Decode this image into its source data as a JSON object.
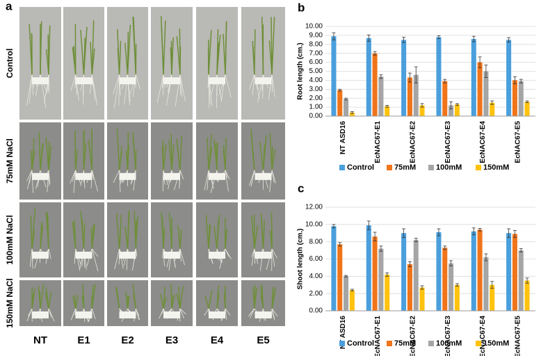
{
  "panel_a": {
    "label": "a",
    "rows": [
      "Control",
      "75mM NaCl",
      "100mM NaCl",
      "150mM NaCl"
    ],
    "columns": [
      "NT",
      "E1",
      "E2",
      "E3",
      "E4",
      "E5"
    ]
  },
  "chart_data": [
    {
      "type": "bar",
      "panel": "b",
      "y_label": "Root length (cm.)",
      "categories": [
        "NT ASD16",
        "EcNAC67-E1",
        "EcNAC67-E2",
        "EcNAC67-E3",
        "EcNAC67-E4",
        "EcNAC67-E5"
      ],
      "series": [
        {
          "name": "Control",
          "color": "#4a9fdc",
          "values": [
            8.9,
            8.7,
            8.5,
            8.8,
            8.6,
            8.5
          ],
          "errors": [
            0.4,
            0.35,
            0.3,
            0.15,
            0.3,
            0.25
          ]
        },
        {
          "name": "75mM",
          "color": "#f0741a",
          "values": [
            2.9,
            7.0,
            4.3,
            3.9,
            6.0,
            4.0
          ],
          "errors": [
            0.1,
            0.2,
            0.5,
            0.2,
            0.6,
            0.4
          ]
        },
        {
          "name": "100mM",
          "color": "#a5a5a5",
          "values": [
            1.9,
            4.4,
            4.6,
            1.2,
            5.0,
            3.9
          ],
          "errors": [
            0.1,
            0.2,
            0.9,
            0.4,
            0.7,
            0.2
          ]
        },
        {
          "name": "150mM",
          "color": "#ffc20e",
          "values": [
            0.4,
            1.1,
            1.2,
            1.3,
            1.5,
            1.6
          ],
          "errors": [
            0.1,
            0.1,
            0.2,
            0.1,
            0.2,
            0.1
          ]
        }
      ],
      "ylim": [
        0,
        10
      ],
      "yticks": [
        {
          "value": 0,
          "label": "0.00"
        },
        {
          "value": 1,
          "label": "1.00"
        },
        {
          "value": 2,
          "label": "2.00"
        },
        {
          "value": 3,
          "label": "3.00"
        },
        {
          "value": 4,
          "label": "4.00"
        },
        {
          "value": 5,
          "label": "5.00"
        },
        {
          "value": 6,
          "label": "6.00"
        },
        {
          "value": 7,
          "label": "7.00"
        },
        {
          "value": 8,
          "label": "8.00"
        },
        {
          "value": 9,
          "label": "9.00"
        },
        {
          "value": 10,
          "label": "10.00"
        }
      ],
      "grid": true,
      "legend": "bottom"
    },
    {
      "type": "bar",
      "panel": "c",
      "y_label": "Shoot length (cm.)",
      "categories": [
        "NT ASD16",
        "EcNAC67-E1",
        "EcNAC67-E2",
        "EcNAC67-E3",
        "EcNAC67-E4",
        "EcNAC67-E5"
      ],
      "series": [
        {
          "name": "Control",
          "color": "#4a9fdc",
          "values": [
            9.8,
            9.9,
            9.0,
            9.1,
            9.2,
            9.0
          ],
          "errors": [
            0.2,
            0.5,
            0.5,
            0.4,
            0.4,
            0.5
          ]
        },
        {
          "name": "75mM",
          "color": "#f0741a",
          "values": [
            7.7,
            8.6,
            5.4,
            7.3,
            9.4,
            8.9
          ],
          "errors": [
            0.2,
            0.5,
            0.3,
            0.2,
            0.15,
            0.4
          ]
        },
        {
          "name": "100mM",
          "color": "#a5a5a5",
          "values": [
            4.0,
            7.2,
            8.2,
            5.5,
            6.2,
            7.0
          ],
          "errors": [
            0.1,
            0.3,
            0.2,
            0.3,
            0.4,
            0.2
          ]
        },
        {
          "name": "150mM",
          "color": "#ffc20e",
          "values": [
            2.4,
            4.2,
            2.7,
            3.0,
            3.0,
            3.5
          ],
          "errors": [
            0.1,
            0.2,
            0.2,
            0.15,
            0.4,
            0.3
          ]
        }
      ],
      "ylim": [
        0,
        12
      ],
      "yticks": [
        {
          "value": 0,
          "label": "0.00"
        },
        {
          "value": 2,
          "label": "2.00"
        },
        {
          "value": 4,
          "label": "4.00"
        },
        {
          "value": 6,
          "label": "6.00"
        },
        {
          "value": 8,
          "label": "8.00"
        },
        {
          "value": 10,
          "label": "10.00"
        },
        {
          "value": 12,
          "label": "12.00"
        }
      ],
      "grid": true,
      "legend": "bottom"
    }
  ]
}
